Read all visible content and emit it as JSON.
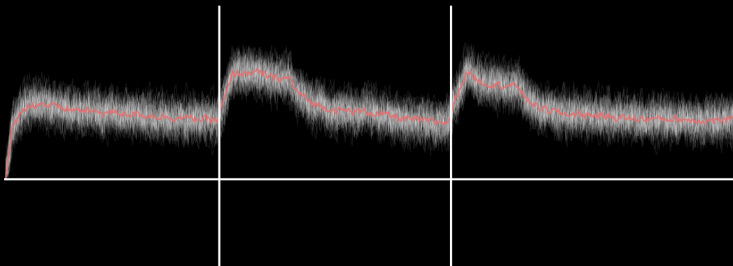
{
  "colors": {
    "background": "#000000",
    "axis": "#ffffff",
    "trace": "#ffffff",
    "mean": "#e86f6f"
  },
  "chart_data": {
    "type": "line",
    "title": "",
    "xlabel": "",
    "ylabel": "",
    "grid": false,
    "legend": "none",
    "xlim": [
      0,
      320
    ],
    "ylim": [
      0,
      1.6
    ],
    "event_markers": [
      94,
      196
    ],
    "noise_amplitude": 0.35,
    "panels": [
      {
        "x_start": 0,
        "x_end": 94
      },
      {
        "x_start": 94,
        "x_end": 196
      },
      {
        "x_start": 196,
        "x_end": 320
      }
    ],
    "series": [
      {
        "role": "mean",
        "x": [
          0,
          3,
          8,
          15,
          25,
          40,
          55,
          70,
          85,
          93,
          95,
          100,
          110,
          118,
          125,
          128,
          135,
          145,
          160,
          175,
          190,
          195,
          197,
          203,
          210,
          218,
          226,
          229,
          235,
          245,
          260,
          275,
          290,
          305,
          320
        ],
        "values": [
          0.0,
          0.6,
          0.85,
          0.9,
          0.84,
          0.8,
          0.78,
          0.74,
          0.72,
          0.7,
          0.85,
          1.25,
          1.28,
          1.2,
          1.2,
          1.05,
          0.9,
          0.82,
          0.8,
          0.72,
          0.68,
          0.68,
          0.9,
          1.28,
          1.15,
          1.12,
          1.1,
          0.95,
          0.85,
          0.78,
          0.76,
          0.72,
          0.72,
          0.7,
          0.7
        ]
      }
    ]
  }
}
